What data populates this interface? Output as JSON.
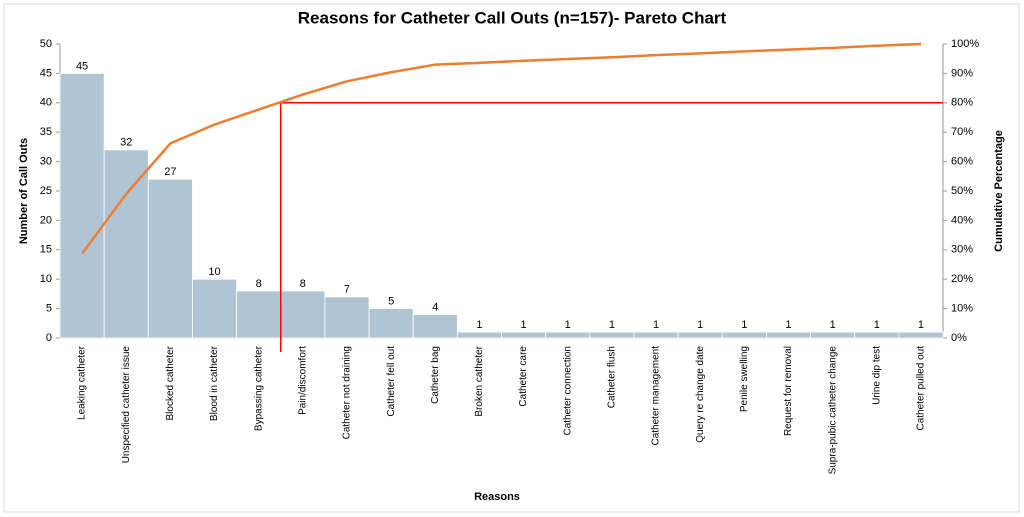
{
  "chart_data": {
    "type": "pareto",
    "title": "Reasons for Catheter Call Outs (n=157)- Pareto Chart",
    "x_label": "Reasons",
    "y_label": "Number of Call Outs",
    "y2_label": "Cumulative Percentage",
    "categories": [
      "Leaking catheter",
      "Unspecified catheter issue",
      "Blocked catheter",
      "Blood in catheter",
      "Bypassing catheter",
      "Pain/discomfort",
      "Catheter not draining",
      "Catheter fell out",
      "Catheter bag",
      "Broken catheter",
      "Catheter care",
      "Catheter connection",
      "Catheter flush",
      "Catheter management",
      "Query re change date",
      "Penile swelling",
      "Request for removal",
      "Supra-pubic catheter change",
      "Urine dip test",
      "Catheter pulled out"
    ],
    "values": [
      45,
      32,
      27,
      10,
      8,
      8,
      7,
      5,
      4,
      1,
      1,
      1,
      1,
      1,
      1,
      1,
      1,
      1,
      1,
      1
    ],
    "bar_color": "#afc5d4",
    "cumulative_values": [
      28.7,
      49.0,
      66.2,
      72.6,
      77.7,
      82.8,
      87.3,
      90.4,
      93.0,
      93.6,
      94.3,
      94.9,
      95.5,
      96.2,
      96.8,
      97.5,
      98.1,
      98.7,
      99.4,
      100
    ],
    "line_color": "#ed7d31",
    "threshold": 80,
    "threshold_color": "#ff0000",
    "ylim": [
      0,
      50
    ],
    "yticks": [
      0,
      5,
      10,
      15,
      20,
      25,
      30,
      35,
      40,
      45,
      50
    ],
    "y2lim": [
      0,
      100
    ],
    "y2ticks": [
      {
        "value": 0,
        "label": "0%"
      },
      {
        "value": 10,
        "label": "10%"
      },
      {
        "value": 20,
        "label": "20%"
      },
      {
        "value": 30,
        "label": "30%"
      },
      {
        "value": 40,
        "label": "40%"
      },
      {
        "value": 50,
        "label": "50%"
      },
      {
        "value": 60,
        "label": "60%"
      },
      {
        "value": 70,
        "label": "70%"
      },
      {
        "value": 80,
        "label": "80%"
      },
      {
        "value": 90,
        "label": "90%"
      },
      {
        "value": 100,
        "label": "100%"
      }
    ]
  }
}
